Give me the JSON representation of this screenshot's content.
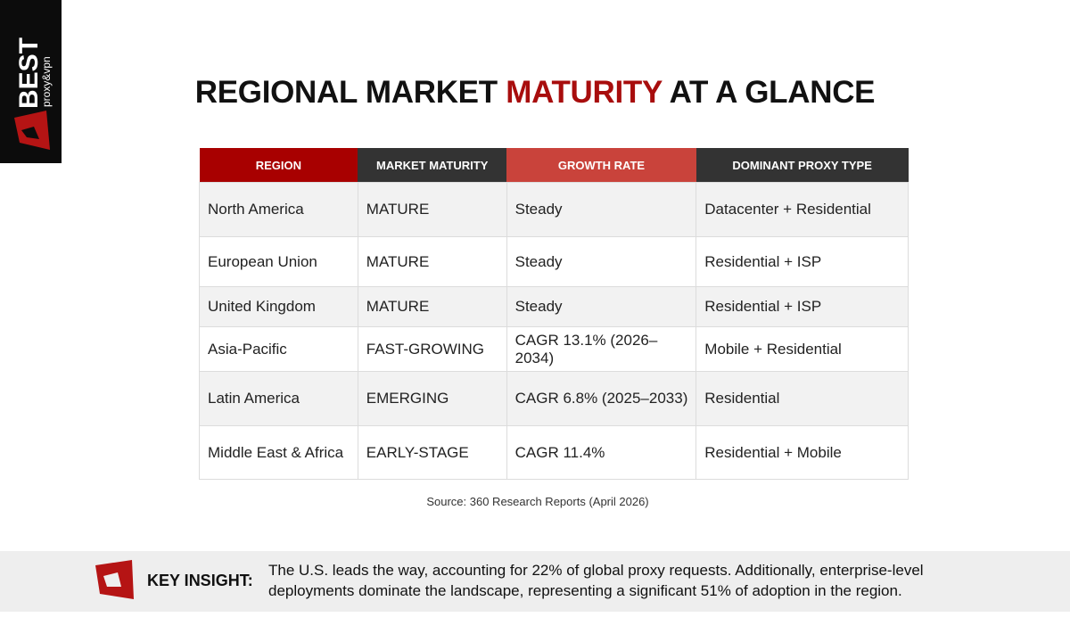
{
  "logo": {
    "brand": "BEST",
    "tagline": "proxy&vpn"
  },
  "title": {
    "before": "REGIONAL MARKET",
    "highlight": "MATURITY",
    "after": "AT A GLANCE"
  },
  "table": {
    "headers": [
      "REGION",
      "MARKET MATURITY",
      "GROWTH RATE",
      "DOMINANT PROXY TYPE"
    ],
    "rows": [
      [
        "North America",
        "MATURE",
        "Steady",
        "Datacenter + Residential"
      ],
      [
        "European Union",
        "MATURE",
        "Steady",
        "Residential + ISP"
      ],
      [
        "United Kingdom",
        "MATURE",
        "Steady",
        "Residential + ISP"
      ],
      [
        "Asia-Pacific",
        "FAST-GROWING",
        "CAGR 13.1% (2026–2034)",
        "Mobile + Residential"
      ],
      [
        "Latin America",
        "EMERGING",
        "CAGR 6.8% (2025–2033)",
        "Residential"
      ],
      [
        "Middle East & Africa",
        "EARLY-STAGE",
        "CAGR 11.4%",
        "Residential + Mobile"
      ]
    ]
  },
  "source": "Source: 360 Research Reports (April 2026)",
  "insight": {
    "label": "KEY INSIGHT:",
    "lines": [
      "The U.S. leads the way, accounting for 22% of global proxy requests. Additionally, enterprise-level",
      "deployments dominate the landscape, representing a significant 51% of adoption in the region."
    ]
  }
}
